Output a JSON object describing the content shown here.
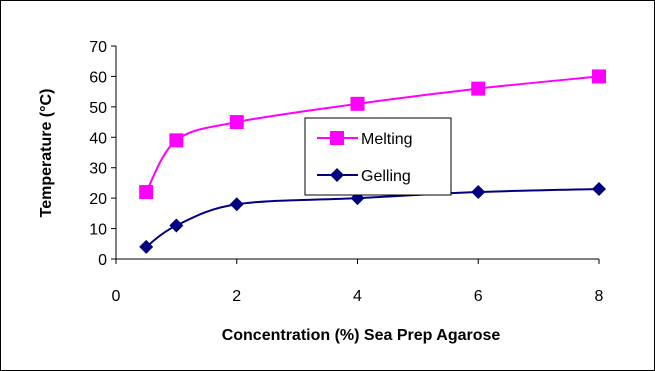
{
  "chart_data": {
    "type": "line",
    "title": "",
    "xlabel": "Concentration (%) Sea Prep Agarose",
    "ylabel": "Temperature (°C)",
    "xlim": [
      0,
      8
    ],
    "ylim": [
      0,
      70
    ],
    "x_ticks": [
      "0",
      "2",
      "4",
      "6",
      "8"
    ],
    "y_ticks": [
      "0",
      "10",
      "20",
      "30",
      "40",
      "50",
      "60",
      "70"
    ],
    "grid": false,
    "legend_position": "inside-center",
    "series": [
      {
        "name": "Melting",
        "marker": "square",
        "color": "#FF00FF",
        "x": [
          0.5,
          1,
          2,
          4,
          6,
          8
        ],
        "y": [
          22,
          39,
          45,
          51,
          56,
          60
        ]
      },
      {
        "name": "Gelling",
        "marker": "diamond",
        "color": "#000080",
        "x": [
          0.5,
          1,
          2,
          4,
          6,
          8
        ],
        "y": [
          4,
          11,
          18,
          20,
          22,
          23
        ]
      }
    ]
  }
}
